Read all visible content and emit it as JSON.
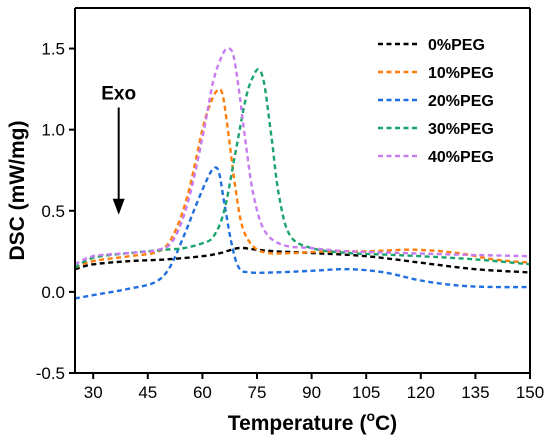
{
  "chart_data": {
    "type": "line",
    "xlabel": "Temperature",
    "xlabel_unit_prefix": "(",
    "xlabel_unit_sup": "o",
    "xlabel_unit_suffix": "C)",
    "ylabel": "DSC (mW/mg)",
    "xlim": [
      25,
      150
    ],
    "ylim": [
      -0.5,
      1.75
    ],
    "xticks": [
      30,
      45,
      60,
      75,
      90,
      105,
      120,
      135,
      150
    ],
    "yticks": [
      -0.5,
      0.0,
      0.5,
      1.0,
      1.5
    ],
    "ytick_labels": [
      "-0.5",
      "0.0",
      "0.5",
      "1.0",
      "1.5"
    ],
    "grid": false,
    "legend_position": "top-right",
    "annotation": {
      "text": "Exo",
      "arrow": "down",
      "x": 37,
      "y_from": 1.1,
      "y_to": 0.5
    },
    "series": [
      {
        "name": "0%PEG",
        "color": "#000000",
        "points": [
          [
            25,
            0.14
          ],
          [
            30,
            0.17
          ],
          [
            40,
            0.19
          ],
          [
            50,
            0.2
          ],
          [
            60,
            0.22
          ],
          [
            65,
            0.24
          ],
          [
            70,
            0.27
          ],
          [
            75,
            0.26
          ],
          [
            80,
            0.25
          ],
          [
            90,
            0.24
          ],
          [
            105,
            0.22
          ],
          [
            120,
            0.18
          ],
          [
            135,
            0.14
          ],
          [
            150,
            0.12
          ]
        ]
      },
      {
        "name": "10%PEG",
        "color": "#FF7F0E",
        "points": [
          [
            25,
            0.15
          ],
          [
            30,
            0.19
          ],
          [
            40,
            0.22
          ],
          [
            48,
            0.25
          ],
          [
            52,
            0.35
          ],
          [
            56,
            0.6
          ],
          [
            60,
            1.0
          ],
          [
            62,
            1.15
          ],
          [
            64,
            1.24
          ],
          [
            65.5,
            1.22
          ],
          [
            67,
            1.0
          ],
          [
            69,
            0.65
          ],
          [
            71,
            0.4
          ],
          [
            74,
            0.28
          ],
          [
            78,
            0.24
          ],
          [
            85,
            0.24
          ],
          [
            95,
            0.25
          ],
          [
            105,
            0.25
          ],
          [
            118,
            0.26
          ],
          [
            130,
            0.24
          ],
          [
            140,
            0.2
          ],
          [
            150,
            0.18
          ]
        ]
      },
      {
        "name": "20%PEG",
        "color": "#1F6FE0",
        "points": [
          [
            25,
            -0.04
          ],
          [
            30,
            -0.02
          ],
          [
            40,
            0.02
          ],
          [
            47,
            0.06
          ],
          [
            51,
            0.15
          ],
          [
            55,
            0.35
          ],
          [
            58,
            0.52
          ],
          [
            61,
            0.68
          ],
          [
            63,
            0.76
          ],
          [
            64.5,
            0.74
          ],
          [
            66,
            0.55
          ],
          [
            68,
            0.3
          ],
          [
            70,
            0.15
          ],
          [
            73,
            0.12
          ],
          [
            80,
            0.12
          ],
          [
            90,
            0.13
          ],
          [
            100,
            0.14
          ],
          [
            110,
            0.12
          ],
          [
            120,
            0.07
          ],
          [
            130,
            0.04
          ],
          [
            140,
            0.03
          ],
          [
            150,
            0.03
          ]
        ]
      },
      {
        "name": "30%PEG",
        "color": "#1AA36A",
        "points": [
          [
            25,
            0.15
          ],
          [
            30,
            0.21
          ],
          [
            40,
            0.24
          ],
          [
            50,
            0.26
          ],
          [
            55,
            0.27
          ],
          [
            60,
            0.3
          ],
          [
            63,
            0.34
          ],
          [
            66,
            0.5
          ],
          [
            69,
            0.85
          ],
          [
            72,
            1.2
          ],
          [
            74,
            1.33
          ],
          [
            75.5,
            1.37
          ],
          [
            77,
            1.28
          ],
          [
            79,
            0.95
          ],
          [
            81,
            0.6
          ],
          [
            84,
            0.35
          ],
          [
            90,
            0.27
          ],
          [
            100,
            0.24
          ],
          [
            110,
            0.23
          ],
          [
            120,
            0.22
          ],
          [
            135,
            0.2
          ],
          [
            150,
            0.17
          ]
        ]
      },
      {
        "name": "40%PEG",
        "color": "#C77CF0",
        "points": [
          [
            25,
            0.17
          ],
          [
            30,
            0.22
          ],
          [
            40,
            0.24
          ],
          [
            48,
            0.26
          ],
          [
            52,
            0.32
          ],
          [
            56,
            0.55
          ],
          [
            60,
            0.95
          ],
          [
            63,
            1.3
          ],
          [
            65.5,
            1.46
          ],
          [
            67,
            1.5
          ],
          [
            68.5,
            1.46
          ],
          [
            70,
            1.25
          ],
          [
            72,
            0.9
          ],
          [
            74,
            0.6
          ],
          [
            77,
            0.38
          ],
          [
            82,
            0.29
          ],
          [
            90,
            0.27
          ],
          [
            100,
            0.25
          ],
          [
            115,
            0.24
          ],
          [
            130,
            0.23
          ],
          [
            150,
            0.22
          ]
        ]
      }
    ]
  }
}
